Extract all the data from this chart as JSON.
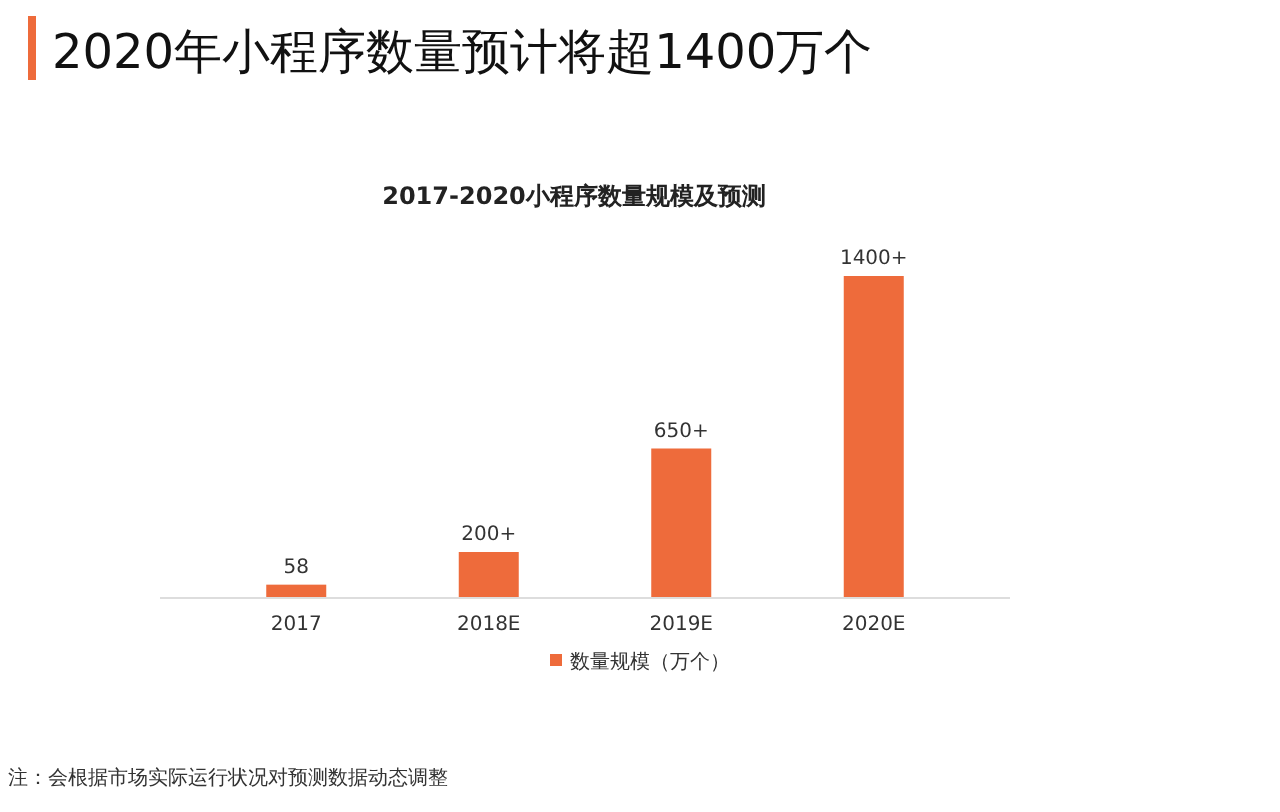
{
  "chart_data": {
    "type": "bar",
    "title": "2020年小程序数量预计将超1400万个",
    "subtitle": "2017-2020小程序数量规模及预测",
    "categories": [
      "2017",
      "2018E",
      "2019E",
      "2020E"
    ],
    "series": [
      {
        "name": "数量规模（万个）",
        "color": "#ee6b3b",
        "values": [
          58,
          200,
          650,
          1400
        ],
        "value_labels": [
          "58",
          "200+",
          "650+",
          "1400+"
        ]
      }
    ],
    "legend": "bottom",
    "annotations": [
      "注：会根据市场实际运行状况对预测数据动态调整"
    ]
  }
}
